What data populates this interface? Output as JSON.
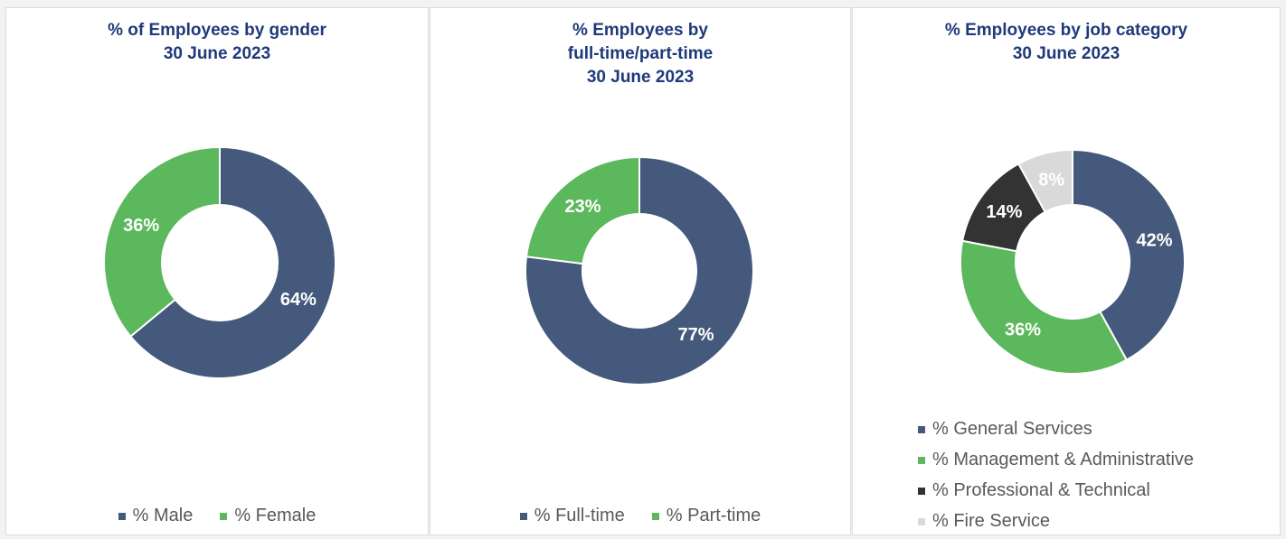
{
  "chart_data": [
    {
      "type": "pie",
      "title": "% of Employees by gender",
      "subtitle": "30 June 2023",
      "series": [
        {
          "name": "% Male",
          "value": 64,
          "label": "64%",
          "color": "#44597c"
        },
        {
          "name": "% Female",
          "value": 36,
          "label": "36%",
          "color": "#5cb85c"
        }
      ],
      "legend_position": "bottom"
    },
    {
      "type": "pie",
      "title": "% Employees by",
      "title_line2": "full-time/part-time",
      "subtitle": "30 June 2023",
      "series": [
        {
          "name": "% Full-time",
          "value": 77,
          "label": "77%",
          "color": "#44597c"
        },
        {
          "name": "% Part-time",
          "value": 23,
          "label": "23%",
          "color": "#5cb85c"
        }
      ],
      "legend_position": "bottom"
    },
    {
      "type": "pie",
      "title": "% Employees by job category",
      "subtitle": "30 June 2023",
      "series": [
        {
          "name": "% General Services",
          "value": 42,
          "label": "42%",
          "color": "#44597c"
        },
        {
          "name": "% Management & Administrative",
          "value": 36,
          "label": "36%",
          "color": "#5cb85c"
        },
        {
          "name": "% Professional & Technical",
          "value": 14,
          "label": "14%",
          "color": "#333333"
        },
        {
          "name": "% Fire Service",
          "value": 8,
          "label": "8%",
          "color": "#d9d9d9"
        }
      ],
      "legend_position": "bottom"
    }
  ]
}
